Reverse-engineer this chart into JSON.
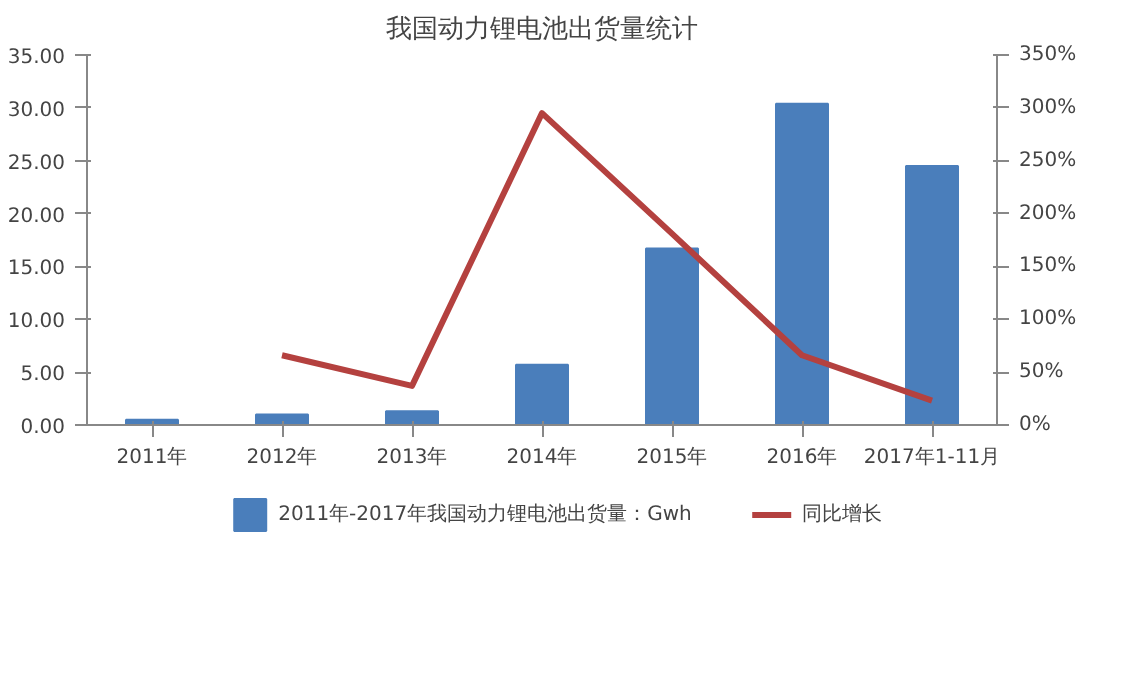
{
  "chart_data": {
    "type": "bar",
    "title": "我国动力锂电池出货量统计",
    "categories": [
      "2011年",
      "2012年",
      "2013年",
      "2014年",
      "2015年",
      "2016年",
      "2017年1-11月"
    ],
    "series": [
      {
        "name": "2011年-2017年我国动力锂电池出货量：Gwh",
        "color": "#4a7ebb",
        "values": [
          0.5,
          1.0,
          1.3,
          5.7,
          16.7,
          30.4,
          24.5
        ]
      },
      {
        "name": "同比增长",
        "type": "line",
        "axis": "y2",
        "color": "#b4413f",
        "values": [
          null,
          66,
          37,
          295,
          181,
          66,
          23
        ]
      }
    ],
    "ylim": [
      0,
      35
    ],
    "yticks": [
      {
        "value": 0,
        "label": "0.00"
      },
      {
        "value": 5,
        "label": "5.00"
      },
      {
        "value": 10,
        "label": "10.00"
      },
      {
        "value": 15,
        "label": "15.00"
      },
      {
        "value": 20,
        "label": "20.00"
      },
      {
        "value": 25,
        "label": "25.00"
      },
      {
        "value": 30,
        "label": "30.00"
      },
      {
        "value": 35,
        "label": "35.00"
      }
    ],
    "y2lim": [
      0,
      350
    ],
    "y2ticks": [
      {
        "value": 0,
        "label": "0%"
      },
      {
        "value": 50,
        "label": "50%"
      },
      {
        "value": 100,
        "label": "100%"
      },
      {
        "value": 150,
        "label": "150%"
      },
      {
        "value": 200,
        "label": "200%"
      },
      {
        "value": 250,
        "label": "250%"
      },
      {
        "value": 300,
        "label": "300%"
      },
      {
        "value": 350,
        "label": "350%"
      }
    ],
    "grid": false,
    "legend": "bottom"
  }
}
